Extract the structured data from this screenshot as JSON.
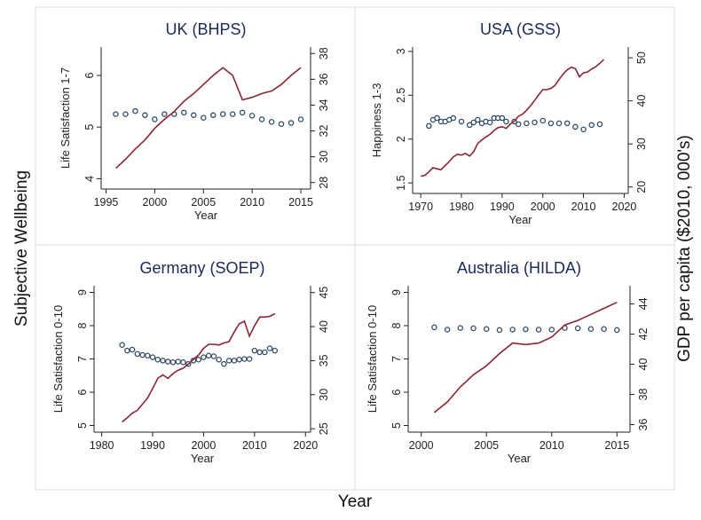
{
  "figure": {
    "left_label": "Subjective Wellbeing",
    "right_label": "GDP per capita ($2010, 000's)",
    "bottom_label": "Year"
  },
  "colors": {
    "gdp_line": "#8b2533",
    "wellbeing_points": "#2e4a66",
    "title": "#1a2a5a"
  },
  "chart_data": [
    {
      "type": "line",
      "title": "UK (BHPS)",
      "xlabel": "Year",
      "ylabel": "Life Satisfaction 1-7",
      "xlim": [
        1994.5,
        2016
      ],
      "ylim": [
        3.8,
        6.55
      ],
      "y2lim": [
        27.5,
        38.5
      ],
      "xticks": [
        1995,
        2000,
        2005,
        2010,
        2015
      ],
      "yticks": [
        4,
        5,
        6
      ],
      "y2ticks": [
        28,
        30,
        32,
        34,
        36,
        38
      ],
      "series": [
        {
          "kind": "scatter",
          "axis": "left",
          "x": [
            1996,
            1997,
            1998,
            1999,
            2000,
            2001,
            2002,
            2003,
            2004,
            2005,
            2006,
            2007,
            2008,
            2009,
            2010,
            2011,
            2012,
            2013,
            2014,
            2015
          ],
          "y": [
            5.25,
            5.25,
            5.31,
            5.23,
            5.15,
            5.25,
            5.25,
            5.28,
            5.23,
            5.18,
            5.23,
            5.25,
            5.25,
            5.28,
            5.22,
            5.15,
            5.1,
            5.06,
            5.08,
            5.15
          ]
        },
        {
          "kind": "line",
          "axis": "right",
          "x": [
            1996,
            1997,
            1998,
            1999,
            2000,
            2001,
            2002,
            2003,
            2004,
            2005,
            2006,
            2007,
            2008,
            2009,
            2010,
            2011,
            2012,
            2013,
            2014,
            2015
          ],
          "y": [
            29.1,
            29.8,
            30.6,
            31.3,
            32.2,
            32.9,
            33.5,
            34.3,
            34.9,
            35.6,
            36.3,
            36.9,
            36.3,
            34.4,
            34.6,
            34.9,
            35.1,
            35.6,
            36.3,
            36.9
          ]
        }
      ]
    },
    {
      "type": "line",
      "title": "USA (GSS)",
      "xlabel": "Year",
      "ylabel": "Happiness 1-3",
      "xlim": [
        1968,
        2021
      ],
      "ylim": [
        1.38,
        3.05
      ],
      "y2lim": [
        18.5,
        52.5
      ],
      "xticks": [
        1970,
        1980,
        1990,
        2000,
        2010,
        2020
      ],
      "yticks": [
        1.5,
        2,
        2.5,
        3
      ],
      "y2ticks": [
        20,
        30,
        40,
        50
      ],
      "series": [
        {
          "kind": "scatter",
          "axis": "left",
          "x": [
            1972,
            1973,
            1974,
            1975,
            1976,
            1977,
            1978,
            1980,
            1982,
            1983,
            1984,
            1985,
            1986,
            1987,
            1988,
            1989,
            1990,
            1991,
            1993,
            1994,
            1996,
            1998,
            2000,
            2002,
            2004,
            2006,
            2008,
            2010,
            2012,
            2014
          ],
          "y": [
            2.15,
            2.22,
            2.24,
            2.2,
            2.2,
            2.22,
            2.24,
            2.2,
            2.16,
            2.19,
            2.22,
            2.18,
            2.2,
            2.19,
            2.24,
            2.24,
            2.24,
            2.2,
            2.2,
            2.17,
            2.18,
            2.19,
            2.21,
            2.18,
            2.18,
            2.18,
            2.14,
            2.11,
            2.16,
            2.17
          ]
        },
        {
          "kind": "line",
          "axis": "right",
          "x": [
            1970,
            1971,
            1972,
            1973,
            1974,
            1975,
            1976,
            1977,
            1978,
            1979,
            1980,
            1981,
            1982,
            1983,
            1984,
            1985,
            1986,
            1987,
            1988,
            1989,
            1990,
            1991,
            1992,
            1993,
            1994,
            1995,
            1996,
            1997,
            1998,
            1999,
            2000,
            2001,
            2002,
            2003,
            2004,
            2005,
            2006,
            2007,
            2008,
            2009,
            2010,
            2011,
            2012,
            2013,
            2014,
            2015
          ],
          "y": [
            22.5,
            22.7,
            23.5,
            24.5,
            24.2,
            24.0,
            25.0,
            25.9,
            27.0,
            27.6,
            27.4,
            27.8,
            27.2,
            28.2,
            30.1,
            30.9,
            31.6,
            32.2,
            33.1,
            33.8,
            34.0,
            33.6,
            34.6,
            35.3,
            36.4,
            36.9,
            37.8,
            38.9,
            40.1,
            41.4,
            42.6,
            42.6,
            42.9,
            43.6,
            45.0,
            46.2,
            47.2,
            47.8,
            47.5,
            45.6,
            46.5,
            46.7,
            47.4,
            47.9,
            48.7,
            49.6
          ]
        }
      ]
    },
    {
      "type": "line",
      "title": "Germany (SOEP)",
      "xlabel": "Year",
      "ylabel": "Life Satisfaction 0-10",
      "xlim": [
        1978.5,
        2021
      ],
      "ylim": [
        4.8,
        9.2
      ],
      "y2lim": [
        24.5,
        46
      ],
      "xticks": [
        1980,
        1990,
        2000,
        2010,
        2020
      ],
      "yticks": [
        5,
        6,
        7,
        8,
        9
      ],
      "y2ticks": [
        25,
        30,
        35,
        40,
        45
      ],
      "series": [
        {
          "kind": "scatter",
          "axis": "left",
          "x": [
            1984,
            1985,
            1986,
            1987,
            1988,
            1989,
            1990,
            1991,
            1992,
            1993,
            1994,
            1995,
            1996,
            1997,
            1998,
            1999,
            2000,
            2001,
            2002,
            2003,
            2004,
            2005,
            2006,
            2007,
            2008,
            2009,
            2010,
            2011,
            2012,
            2013,
            2014
          ],
          "y": [
            7.42,
            7.25,
            7.28,
            7.15,
            7.12,
            7.1,
            7.05,
            6.98,
            6.95,
            6.92,
            6.9,
            6.92,
            6.9,
            6.85,
            6.95,
            6.98,
            7.05,
            7.1,
            7.08,
            6.98,
            6.85,
            6.95,
            6.95,
            6.98,
            7.0,
            7.0,
            7.25,
            7.2,
            7.2,
            7.32,
            7.25
          ]
        },
        {
          "kind": "line",
          "axis": "right",
          "x": [
            1984,
            1985,
            1986,
            1987,
            1988,
            1989,
            1990,
            1991,
            1992,
            1993,
            1994,
            1995,
            1996,
            1997,
            1998,
            1999,
            2000,
            2001,
            2002,
            2003,
            2004,
            2005,
            2006,
            2007,
            2008,
            2009,
            2010,
            2011,
            2012,
            2013,
            2014
          ],
          "y": [
            26.0,
            26.6,
            27.3,
            27.7,
            28.6,
            29.5,
            30.9,
            32.4,
            32.9,
            32.4,
            33.1,
            33.6,
            33.9,
            34.5,
            35.2,
            35.8,
            36.8,
            37.4,
            37.4,
            37.3,
            37.6,
            37.8,
            39.2,
            40.4,
            40.8,
            38.6,
            40.1,
            41.4,
            41.4,
            41.5,
            41.9
          ]
        }
      ]
    },
    {
      "type": "line",
      "title": "Australia (HILDA)",
      "xlabel": "Year",
      "ylabel": "Life Satisfaction 0-10",
      "xlim": [
        1999,
        2016
      ],
      "ylim": [
        4.8,
        9.2
      ],
      "y2lim": [
        35.5,
        45.2
      ],
      "xticks": [
        2000,
        2005,
        2010,
        2015
      ],
      "yticks": [
        5,
        6,
        7,
        8,
        9
      ],
      "y2ticks": [
        36,
        38,
        40,
        42,
        44
      ],
      "series": [
        {
          "kind": "scatter",
          "axis": "left",
          "x": [
            2001,
            2002,
            2003,
            2004,
            2005,
            2006,
            2007,
            2008,
            2009,
            2010,
            2011,
            2012,
            2013,
            2014,
            2015
          ],
          "y": [
            7.95,
            7.88,
            7.93,
            7.92,
            7.9,
            7.87,
            7.88,
            7.89,
            7.88,
            7.88,
            7.93,
            7.92,
            7.9,
            7.9,
            7.87
          ]
        },
        {
          "kind": "line",
          "axis": "right",
          "x": [
            2001,
            2002,
            2003,
            2004,
            2005,
            2006,
            2007,
            2008,
            2009,
            2010,
            2011,
            2012,
            2013,
            2014,
            2015
          ],
          "y": [
            36.8,
            37.5,
            38.5,
            39.3,
            39.9,
            40.7,
            41.4,
            41.3,
            41.4,
            41.8,
            42.6,
            42.9,
            43.3,
            43.7,
            44.1
          ]
        }
      ]
    }
  ]
}
